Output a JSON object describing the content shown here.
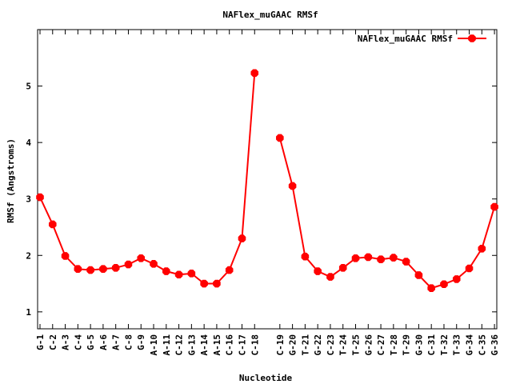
{
  "chart_data": {
    "type": "line",
    "title": "NAFlex_muGAAC RMSf",
    "xlabel": "Nucleotide",
    "ylabel": "RMSf (Angstroms)",
    "ylim": [
      0.7,
      6.0
    ],
    "yticks": [
      1,
      2,
      3,
      4,
      5
    ],
    "grid": false,
    "legend_position": "top-right",
    "color": "#ff0000",
    "series": [
      {
        "name": "NAFlex_muGAAC RMSf",
        "segments": [
          {
            "categories": [
              "G-1",
              "C-2",
              "A-3",
              "C-4",
              "G-5",
              "A-6",
              "A-7",
              "C-8",
              "G-9",
              "A-10",
              "A-11",
              "C-12",
              "G-13",
              "A-14",
              "A-15",
              "C-16",
              "C-17",
              "C-18"
            ],
            "values": [
              3.03,
              2.55,
              1.99,
              1.76,
              1.74,
              1.76,
              1.78,
              1.84,
              1.95,
              1.85,
              1.72,
              1.66,
              1.68,
              1.5,
              1.5,
              1.74,
              2.3,
              5.23
            ]
          },
          {
            "categories": [
              "C-19",
              "G-20",
              "T-21",
              "G-22",
              "C-23",
              "T-24",
              "T-25",
              "G-26",
              "C-27",
              "T-28",
              "T-29",
              "G-30",
              "C-31",
              "T-32",
              "T-33",
              "G-34",
              "C-35",
              "G-36"
            ],
            "values": [
              4.08,
              3.23,
              1.98,
              1.72,
              1.62,
              1.78,
              1.95,
              1.97,
              1.93,
              1.96,
              1.89,
              1.65,
              1.42,
              1.49,
              1.58,
              1.77,
              2.12,
              2.86
            ]
          }
        ]
      }
    ]
  }
}
